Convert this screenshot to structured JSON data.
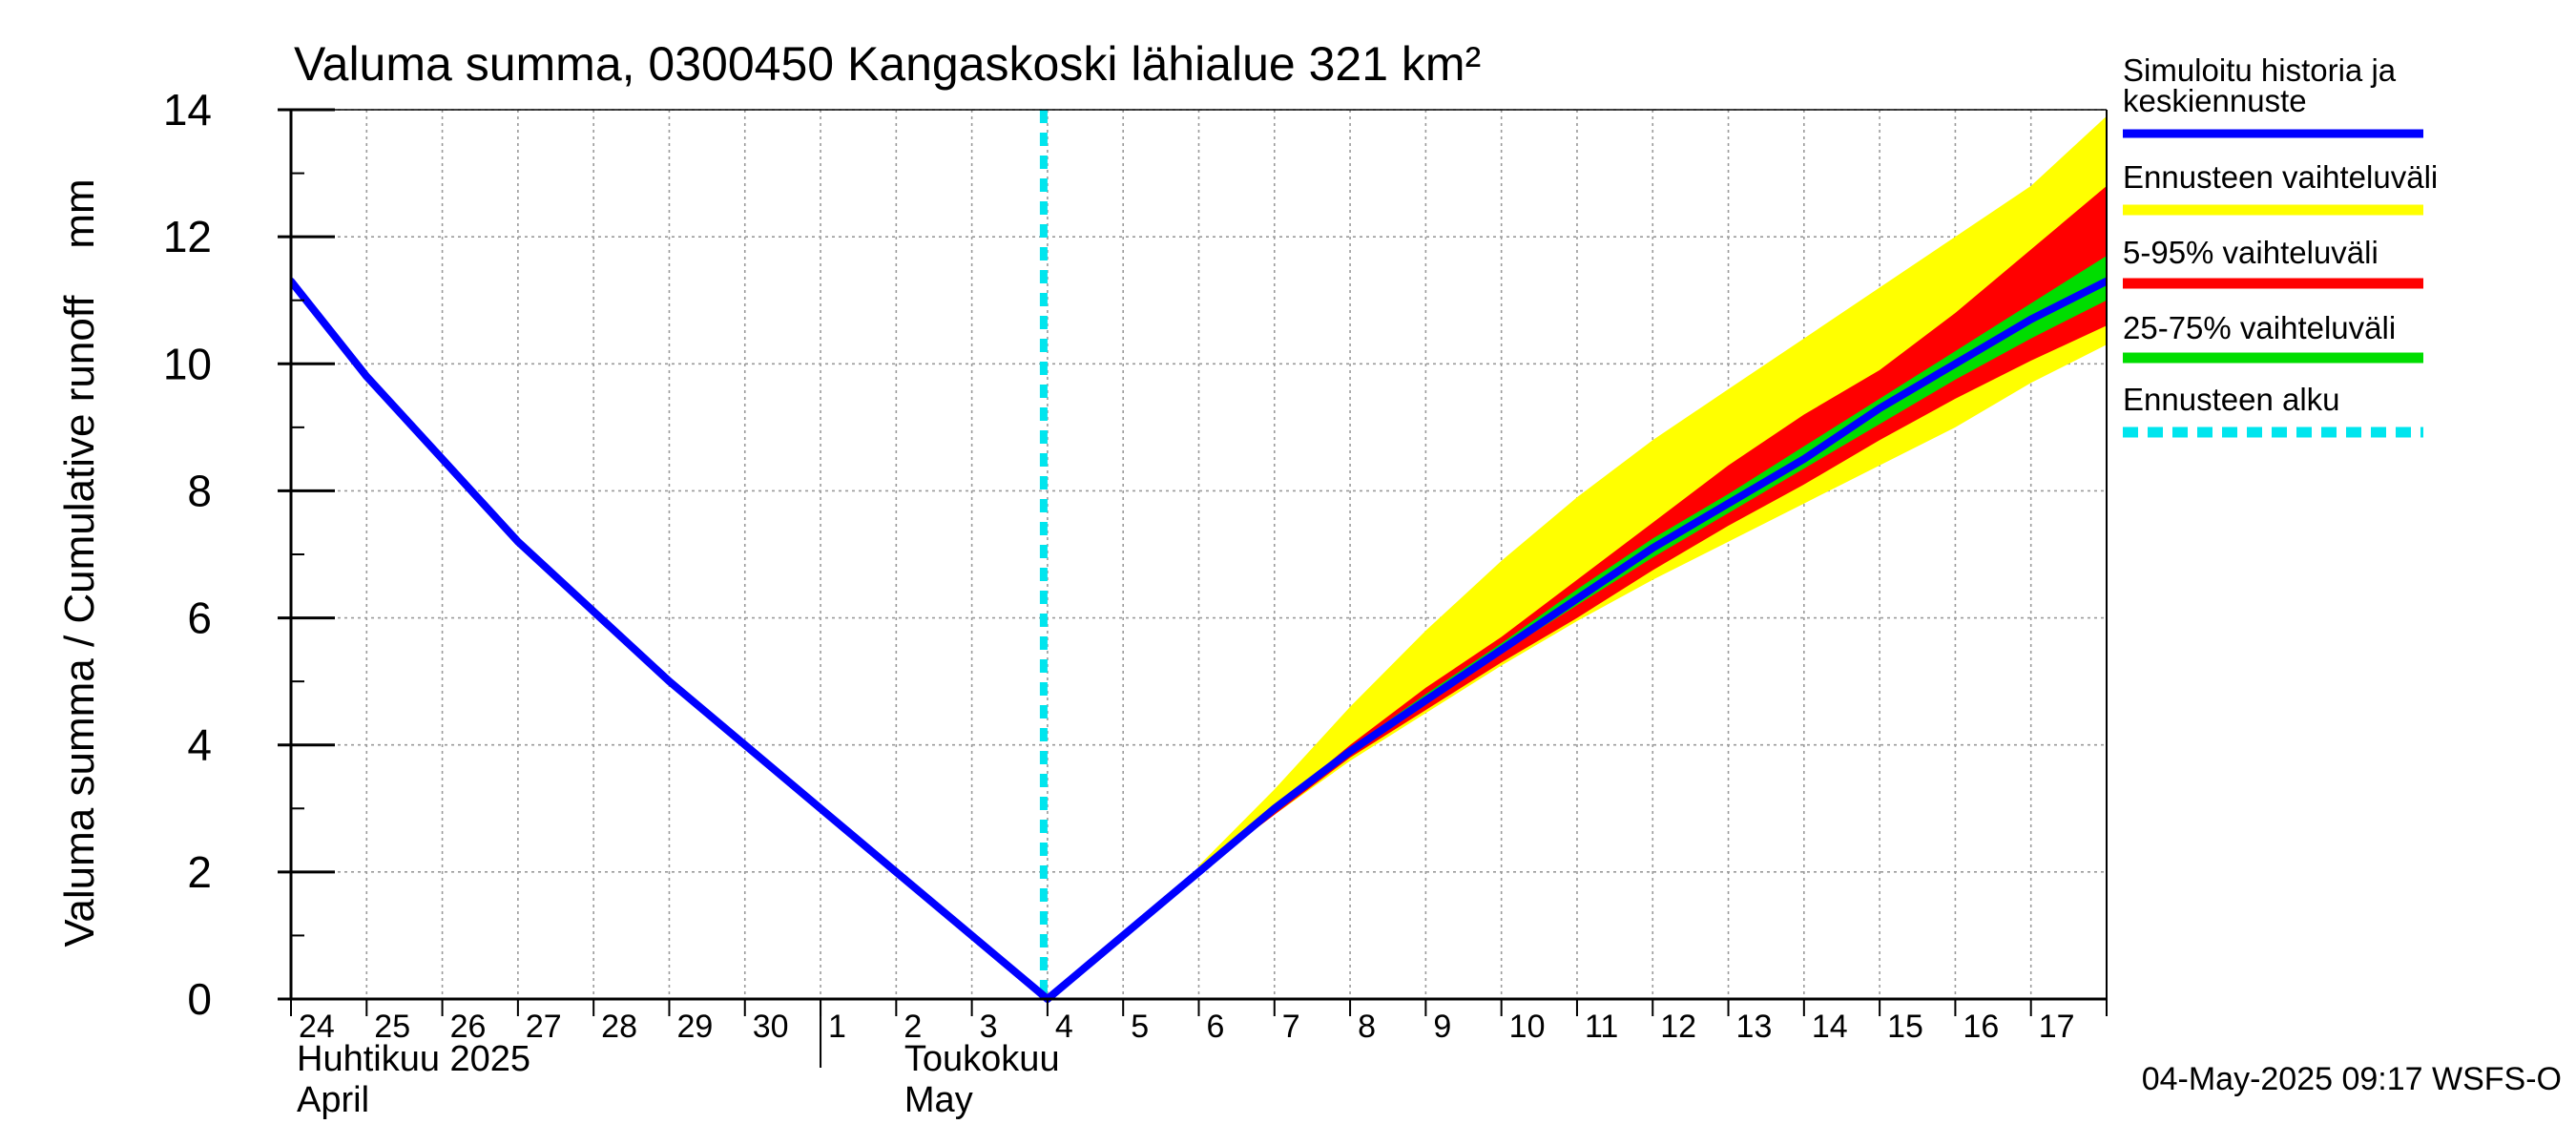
{
  "chart_data": {
    "type": "line",
    "title": "Valuma summa, 0300450 Kangaskoski lähialue 321 km²",
    "ylabel": "Valuma summa / Cumulative runoff    mm",
    "ylim": [
      0,
      14
    ],
    "yticks": [
      0,
      2,
      4,
      6,
      8,
      10,
      12,
      14
    ],
    "xlim": [
      "2025-04-24",
      "2025-05-17"
    ],
    "day_ticks": [
      "24",
      "25",
      "26",
      "27",
      "28",
      "29",
      "30",
      "1",
      "2",
      "3",
      "4",
      "5",
      "6",
      "7",
      "8",
      "9",
      "10",
      "11",
      "12",
      "13",
      "14",
      "15",
      "16",
      "17"
    ],
    "month_labels": [
      {
        "fi": "Huhtikuu  2025",
        "en": "April"
      },
      {
        "fi": "Toukokuu",
        "en": "May"
      }
    ],
    "grid": true,
    "legend_position": "right",
    "forecast_start": "2025-05-04",
    "series": [
      {
        "name": "Simuloitu historia ja keskiennuste",
        "color": "#0000ff",
        "x": [
          "2025-04-24",
          "2025-04-25",
          "2025-04-26",
          "2025-04-27",
          "2025-04-28",
          "2025-04-29",
          "2025-04-30",
          "2025-05-01",
          "2025-05-02",
          "2025-05-03",
          "2025-05-04",
          "2025-05-05",
          "2025-05-06",
          "2025-05-07",
          "2025-05-08",
          "2025-05-09",
          "2025-05-10",
          "2025-05-11",
          "2025-05-12",
          "2025-05-13",
          "2025-05-14",
          "2025-05-15",
          "2025-05-16",
          "2025-05-17",
          "2025-05-18"
        ],
        "y": [
          11.3,
          9.8,
          8.5,
          7.2,
          6.1,
          5.0,
          4.0,
          3.0,
          2.0,
          1.0,
          0.0,
          1.0,
          2.0,
          3.0,
          3.9,
          4.7,
          5.5,
          6.3,
          7.1,
          7.8,
          8.5,
          9.3,
          10.0,
          10.7,
          11.3
        ]
      }
    ],
    "bands": [
      {
        "name": "Ennusteen vaihteluväli",
        "color": "#ffff00",
        "x": [
          "2025-05-06",
          "2025-05-07",
          "2025-05-08",
          "2025-05-09",
          "2025-05-10",
          "2025-05-11",
          "2025-05-12",
          "2025-05-13",
          "2025-05-14",
          "2025-05-15",
          "2025-05-16",
          "2025-05-17",
          "2025-05-18"
        ],
        "lower": [
          2.0,
          2.9,
          3.75,
          4.5,
          5.25,
          5.95,
          6.6,
          7.2,
          7.8,
          8.4,
          9.0,
          9.7,
          10.3
        ],
        "upper": [
          2.1,
          3.3,
          4.6,
          5.8,
          6.9,
          7.9,
          8.8,
          9.6,
          10.4,
          11.2,
          12.0,
          12.8,
          13.9
        ]
      },
      {
        "name": "5-95% vaihteluväli",
        "color": "#ff0000",
        "x": [
          "2025-05-06",
          "2025-05-07",
          "2025-05-08",
          "2025-05-09",
          "2025-05-10",
          "2025-05-11",
          "2025-05-12",
          "2025-05-13",
          "2025-05-14",
          "2025-05-15",
          "2025-05-16",
          "2025-05-17",
          "2025-05-18"
        ],
        "lower": [
          2.0,
          2.9,
          3.8,
          4.55,
          5.3,
          6.0,
          6.75,
          7.45,
          8.1,
          8.8,
          9.45,
          10.05,
          10.6
        ],
        "upper": [
          2.0,
          3.0,
          4.0,
          4.9,
          5.7,
          6.6,
          7.5,
          8.4,
          9.2,
          9.9,
          10.8,
          11.8,
          12.8
        ]
      },
      {
        "name": "25-75% vaihteluväli",
        "color": "#00dd00",
        "x": [
          "2025-05-06",
          "2025-05-07",
          "2025-05-08",
          "2025-05-09",
          "2025-05-10",
          "2025-05-11",
          "2025-05-12",
          "2025-05-13",
          "2025-05-14",
          "2025-05-15",
          "2025-05-16",
          "2025-05-17",
          "2025-05-18"
        ],
        "lower": [
          2.0,
          2.95,
          3.85,
          4.65,
          5.45,
          6.2,
          6.95,
          7.65,
          8.35,
          9.05,
          9.75,
          10.4,
          11.0
        ],
        "upper": [
          2.0,
          3.0,
          3.95,
          4.8,
          5.6,
          6.45,
          7.25,
          7.95,
          8.7,
          9.45,
          10.2,
          10.95,
          11.7
        ]
      }
    ],
    "markers": [
      {
        "name": "Ennusteen alku",
        "color": "#00e5ee",
        "x": "2025-05-04",
        "style": "dashed"
      }
    ],
    "legend": [
      {
        "label": "Simuloitu historia ja keskiennuste",
        "color": "#0000ff",
        "style": "solid"
      },
      {
        "label": "Ennusteen vaihteluväli",
        "color": "#ffff00",
        "style": "solid"
      },
      {
        "label": "5-95% vaihteluväli",
        "color": "#ff0000",
        "style": "solid"
      },
      {
        "label": "25-75% vaihteluväli",
        "color": "#00dd00",
        "style": "solid"
      },
      {
        "label": "Ennusteen alku",
        "color": "#00e5ee",
        "style": "dashed"
      }
    ]
  },
  "footer": {
    "timestamp": "04-May-2025 09:17 WSFS-O"
  }
}
